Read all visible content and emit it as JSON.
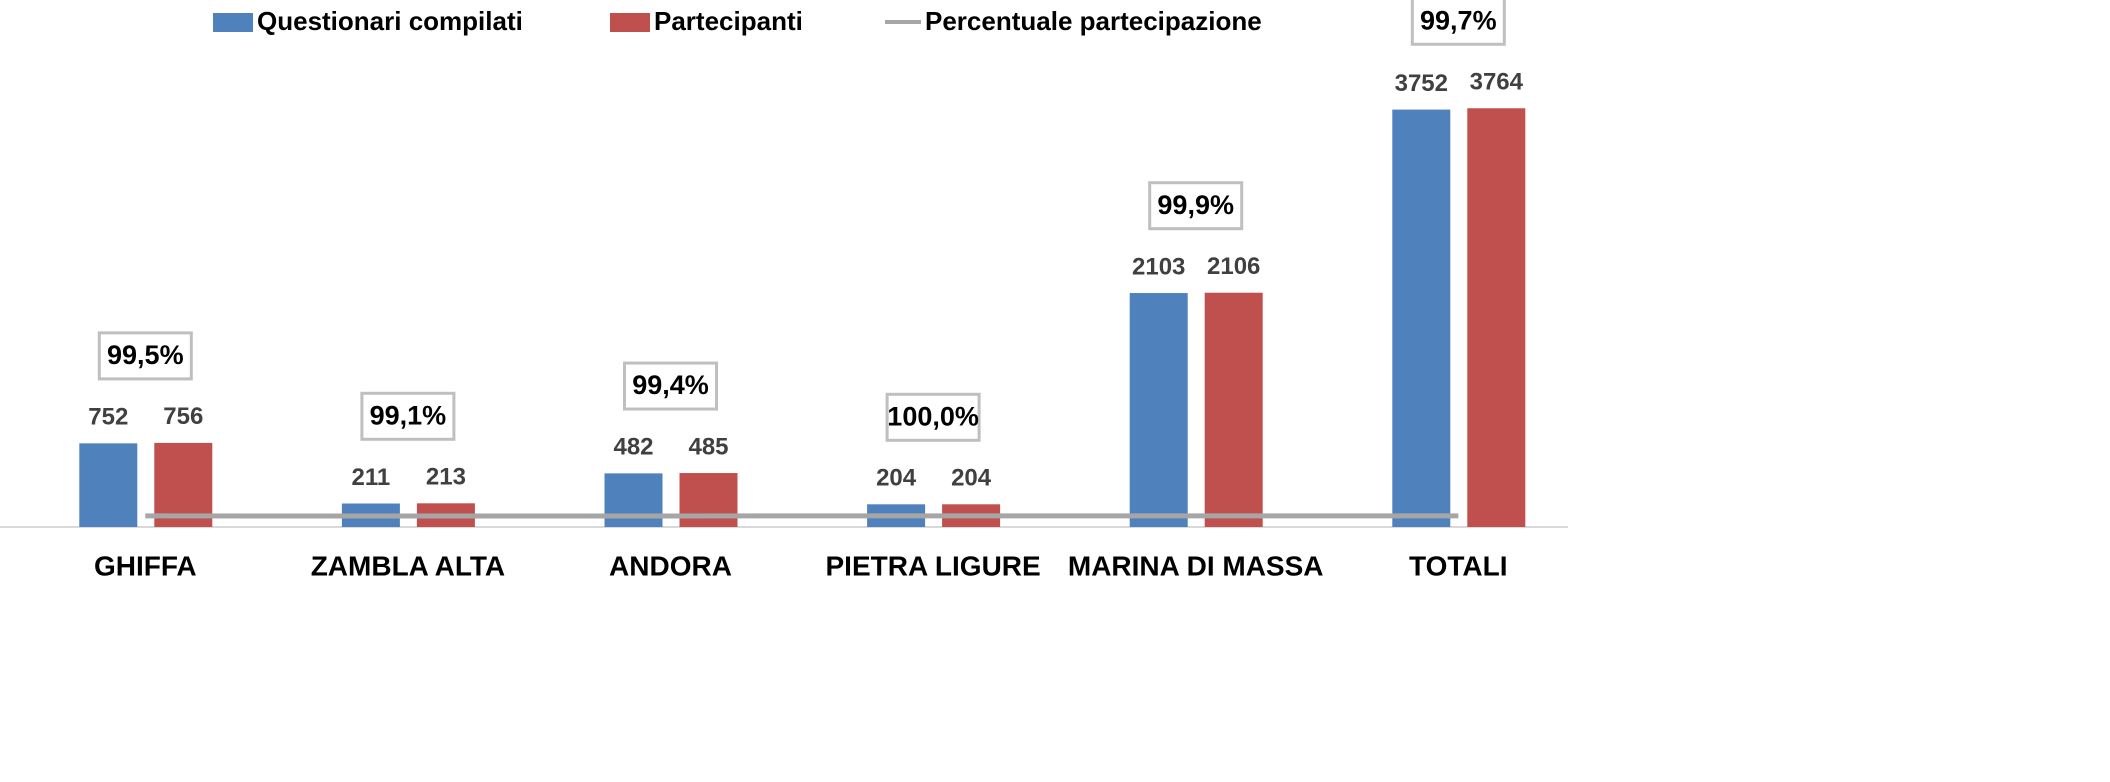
{
  "chart_data": {
    "type": "bar",
    "categories": [
      "GHIFFA",
      "ZAMBLA ALTA",
      "ANDORA",
      "PIETRA LIGURE",
      "MARINA DI MASSA",
      "TOTALI"
    ],
    "series": [
      {
        "name": "Questionari compilati",
        "color": "#4f81bd",
        "values": [
          752,
          211,
          482,
          204,
          2103,
          3752
        ]
      },
      {
        "name": "Partecipanti",
        "color": "#c0504d",
        "values": [
          756,
          213,
          485,
          204,
          2106,
          3764
        ]
      },
      {
        "name": "Percentuale partecipazione",
        "type": "line",
        "color": "#a6a6a6",
        "values": [
          99.5,
          99.1,
          99.4,
          100.0,
          99.9,
          99.7
        ],
        "value_labels": [
          "99,5%",
          "99,1%",
          "99,4%",
          "100,0%",
          "99,9%",
          "99,7%"
        ]
      }
    ],
    "ylim": [
      0,
      4000
    ],
    "legend": "top"
  }
}
